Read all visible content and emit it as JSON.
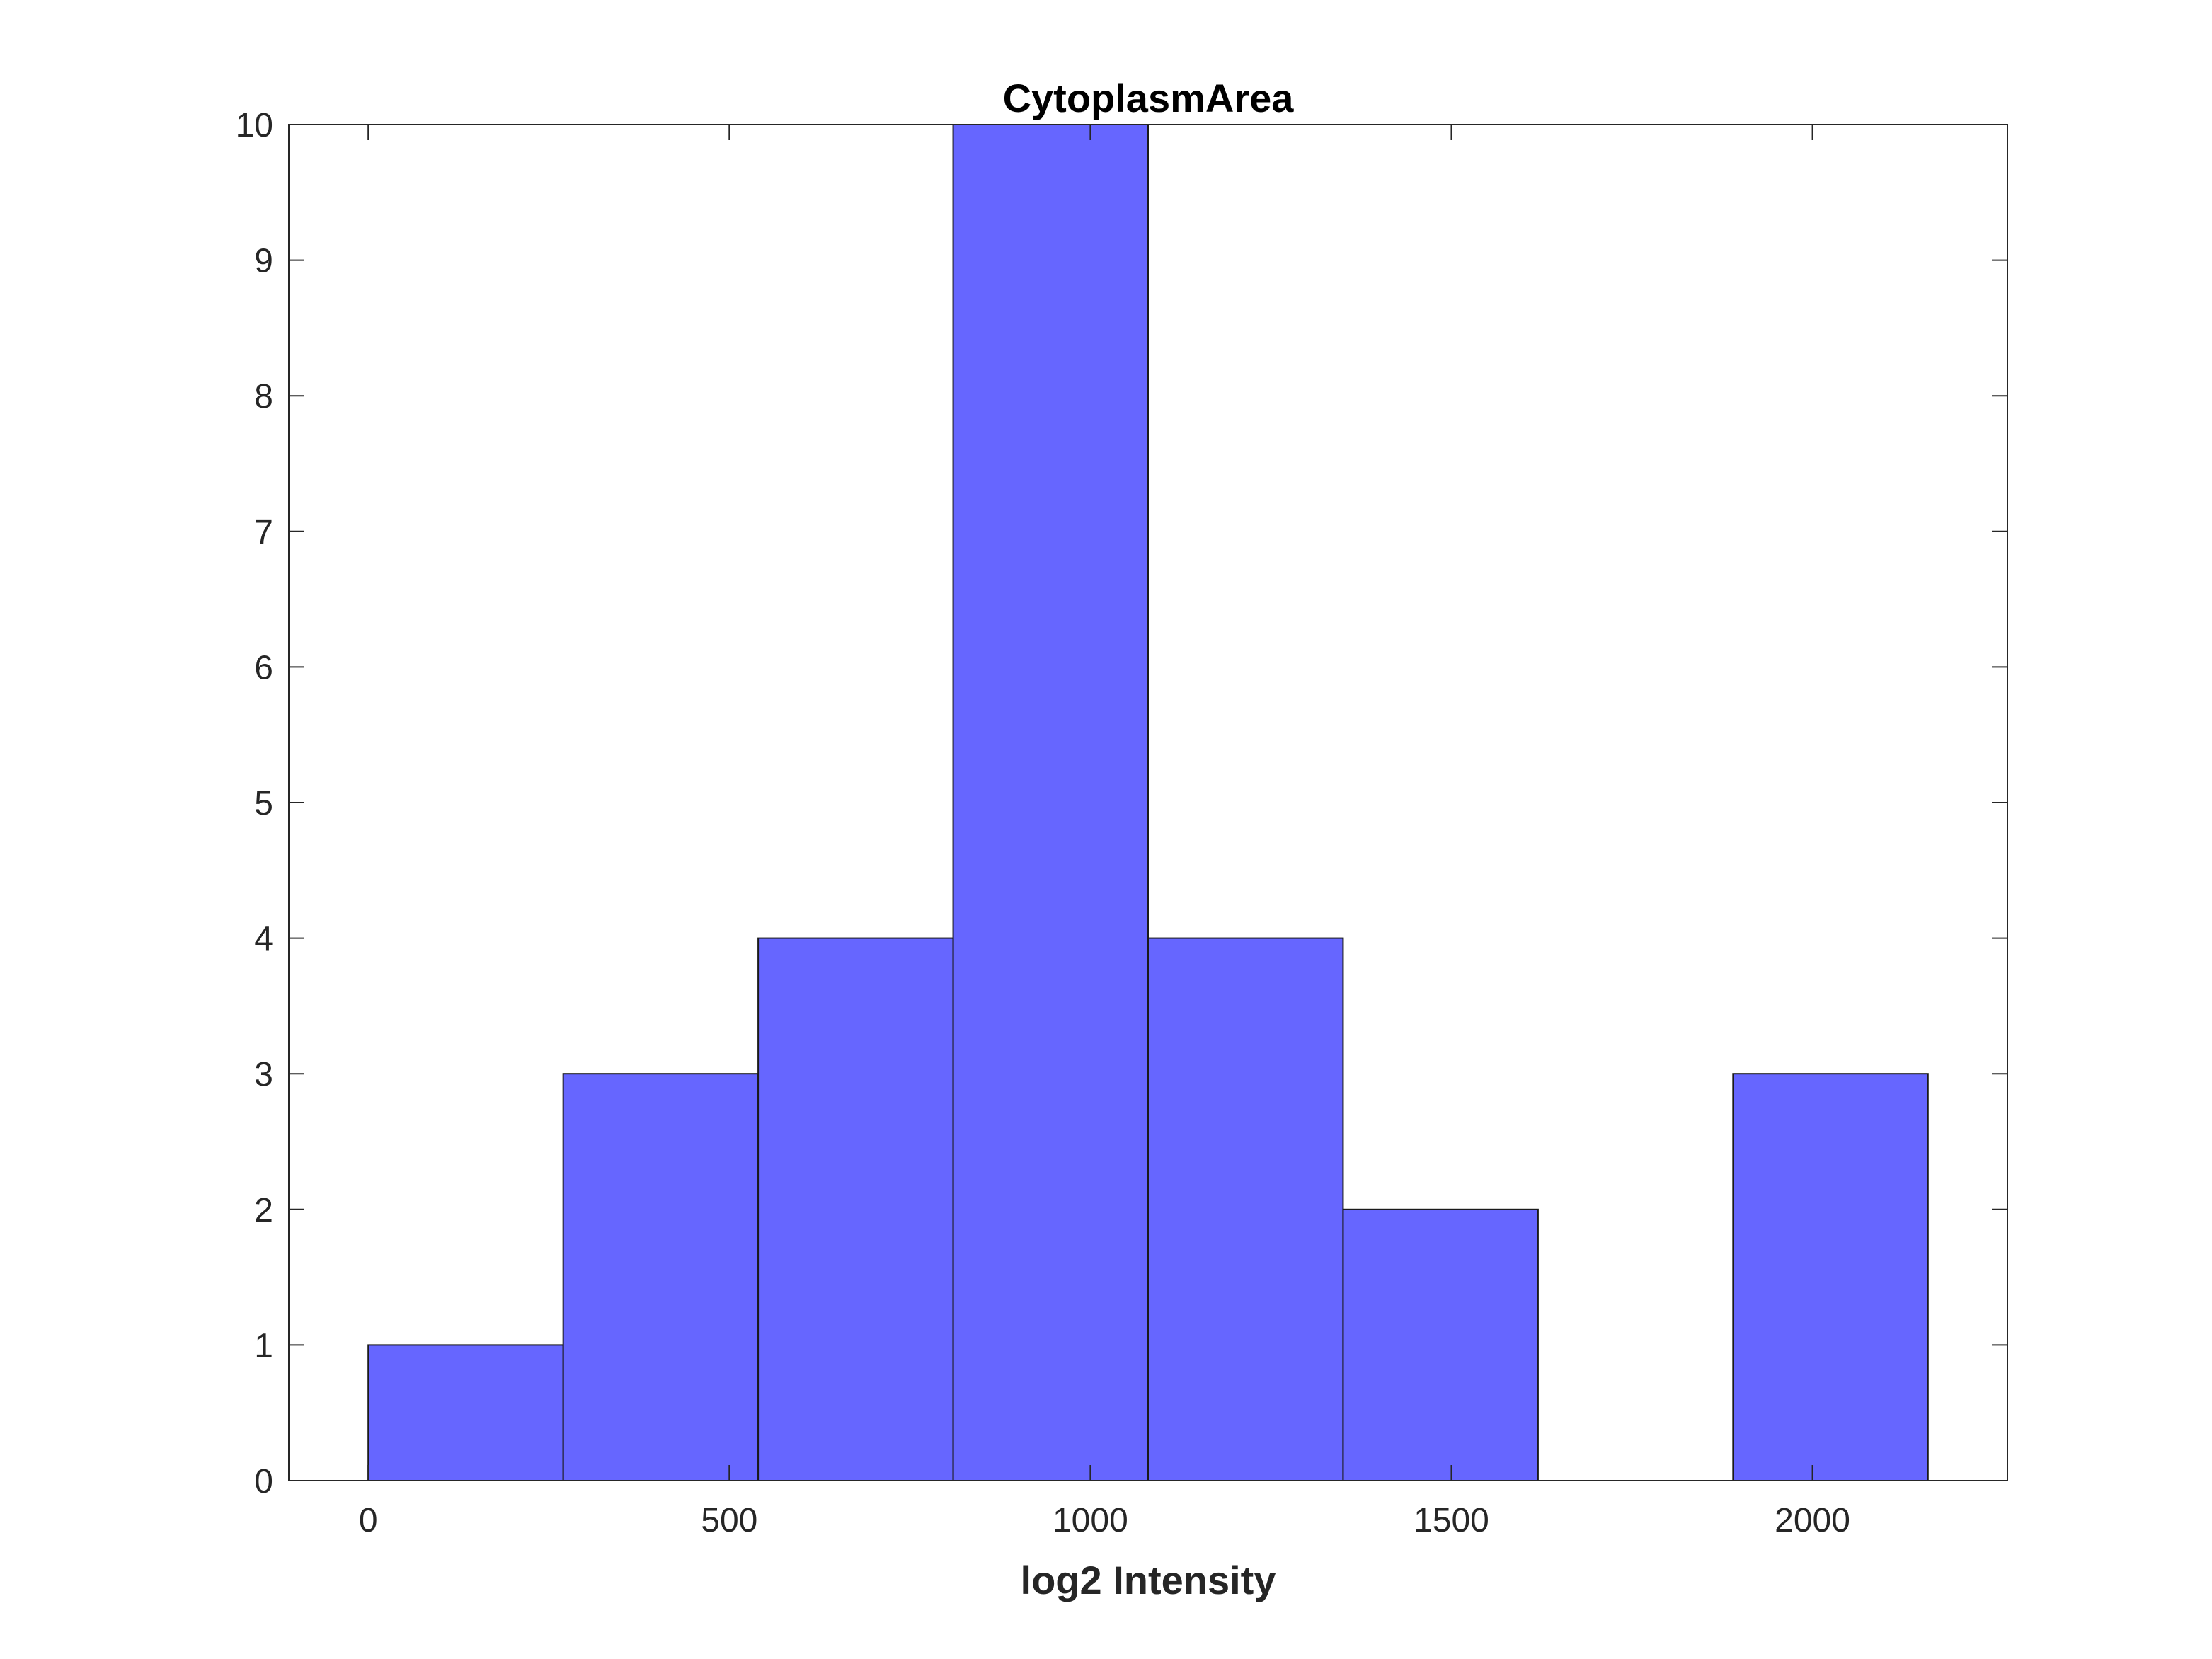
{
  "chart_data": {
    "type": "bar",
    "title": "CytoplasmArea",
    "xlabel": "log2 Intensity",
    "ylabel": "",
    "bin_width": 270,
    "bin_edges": [
      0,
      270,
      540,
      810,
      1080,
      1350,
      1620,
      1890,
      2160
    ],
    "values": [
      1,
      3,
      4,
      10,
      4,
      2,
      0,
      3
    ],
    "xlim": [
      -110,
      2270
    ],
    "ylim": [
      0,
      10
    ],
    "xticks": [
      0,
      500,
      1000,
      1500,
      2000
    ],
    "xtick_labels": [
      "0",
      "500",
      "1000",
      "1500",
      "2000"
    ],
    "yticks": [
      0,
      1,
      2,
      3,
      4,
      5,
      6,
      7,
      8,
      9,
      10
    ],
    "ytick_labels": [
      "0",
      "1",
      "2",
      "3",
      "4",
      "5",
      "6",
      "7",
      "8",
      "9",
      "10"
    ],
    "bar_color": "#6666ff",
    "edge_color": "#1a1a1a",
    "grid": false
  }
}
